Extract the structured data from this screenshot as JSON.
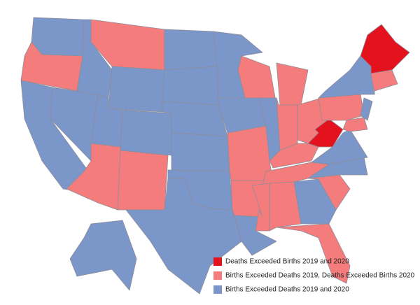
{
  "legend": {
    "items": [
      {
        "label": "Deaths Exceeded Births 2019 and 2020",
        "color": "#e3121c"
      },
      {
        "label": "Births Exceeded Deaths 2019, Deaths Exceeded Births 2020",
        "color": "#f47c7c"
      },
      {
        "label": "Births Exceeded Deaths 2019 and 2020",
        "color": "#7b96c9"
      }
    ]
  }
}
